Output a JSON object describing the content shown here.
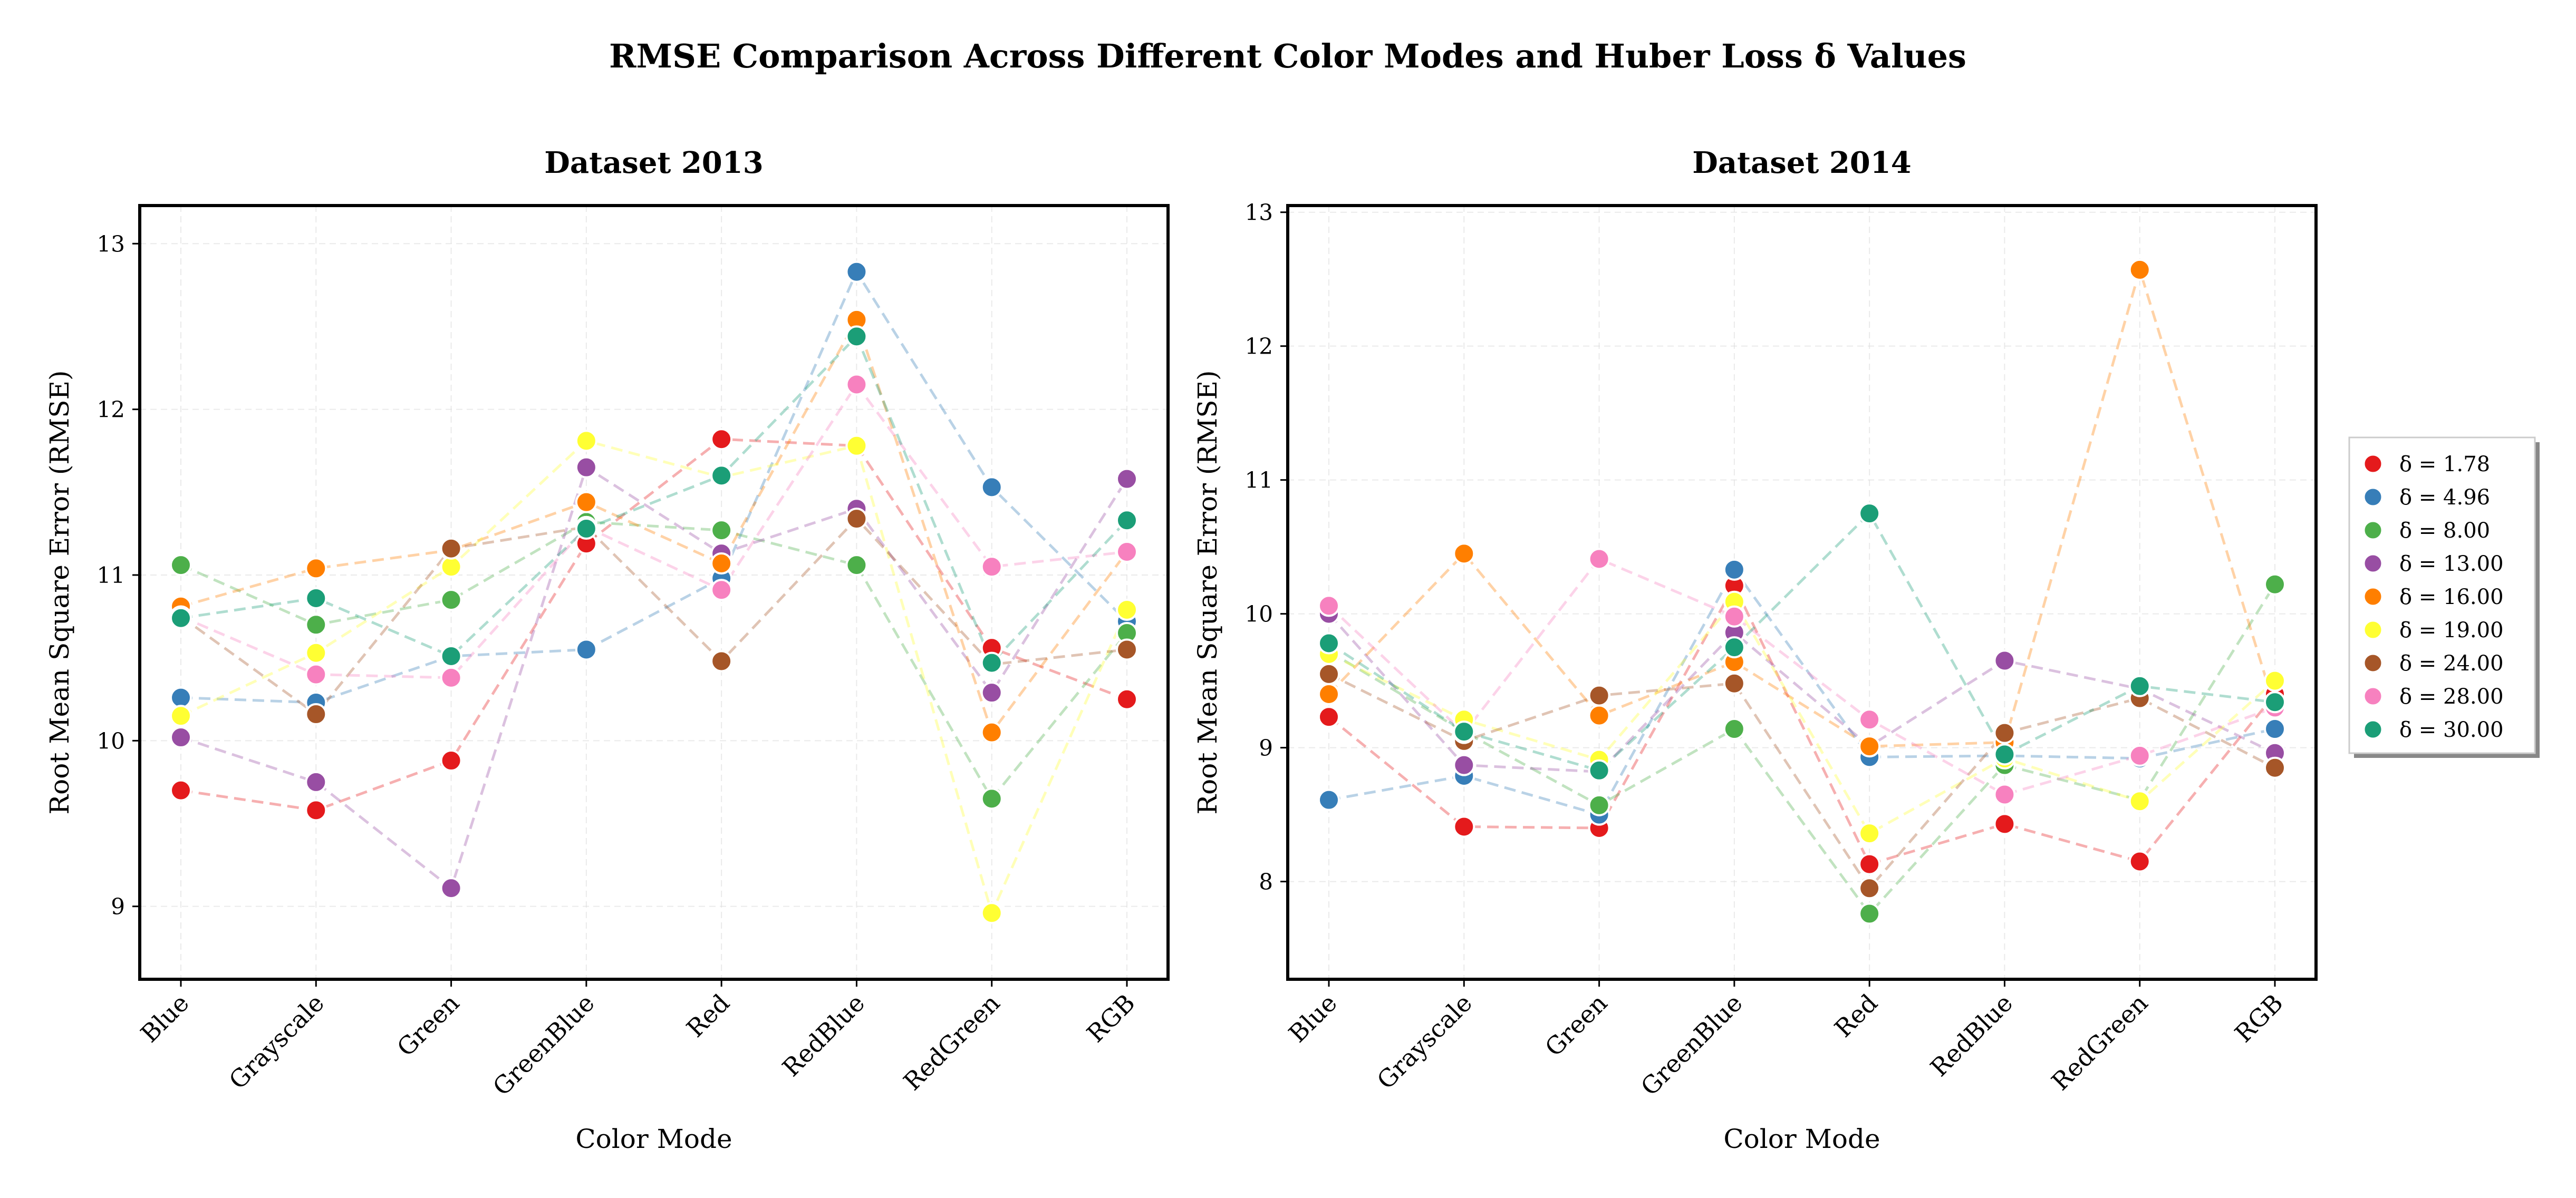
{
  "figure": {
    "title": "RMSE Comparison Across Different Color Modes and Huber Loss δ Values"
  },
  "legend": {
    "placement": "right",
    "items": [
      {
        "label": "δ = 1.78",
        "color": "#e41a1c"
      },
      {
        "label": "δ = 4.96",
        "color": "#377eb8"
      },
      {
        "label": "δ = 8.00",
        "color": "#4daf4a"
      },
      {
        "label": "δ = 13.00",
        "color": "#984ea3"
      },
      {
        "label": "δ = 16.00",
        "color": "#ff7f00"
      },
      {
        "label": "δ = 19.00",
        "color": "#ffff33"
      },
      {
        "label": "δ = 24.00",
        "color": "#a65628"
      },
      {
        "label": "δ = 28.00",
        "color": "#f781bf"
      },
      {
        "label": "δ = 30.00",
        "color": "#1b9e77"
      }
    ]
  },
  "chart_data": [
    {
      "type": "line",
      "title": "Dataset 2013",
      "xlabel": "Color Mode",
      "ylabel": "Root Mean Square Error (RMSE)",
      "categories": [
        "Blue",
        "Grayscale",
        "Green",
        "GreenBlue",
        "Red",
        "RedBlue",
        "RedGreen",
        "RGB"
      ],
      "ylim": [
        8.56,
        13.23
      ],
      "yticks": [
        9,
        10,
        11,
        12,
        13
      ],
      "grid": true,
      "line_style": "dashed",
      "series": [
        {
          "name": "δ = 1.78",
          "color": "#e41a1c",
          "values": [
            9.7,
            9.58,
            9.88,
            11.19,
            11.82,
            11.78,
            10.56,
            10.25
          ]
        },
        {
          "name": "δ = 4.96",
          "color": "#377eb8",
          "values": [
            10.26,
            10.23,
            10.51,
            10.55,
            10.98,
            12.83,
            11.53,
            10.72
          ]
        },
        {
          "name": "δ = 8.00",
          "color": "#4daf4a",
          "values": [
            11.06,
            10.7,
            10.85,
            11.32,
            11.27,
            11.06,
            9.65,
            10.65
          ]
        },
        {
          "name": "δ = 13.00",
          "color": "#984ea3",
          "values": [
            10.02,
            9.75,
            9.11,
            11.65,
            11.13,
            11.4,
            10.29,
            11.58
          ]
        },
        {
          "name": "δ = 16.00",
          "color": "#ff7f00",
          "values": [
            10.81,
            11.04,
            11.15,
            11.44,
            11.07,
            12.54,
            10.05,
            11.14
          ]
        },
        {
          "name": "δ = 19.00",
          "color": "#ffff33",
          "values": [
            10.15,
            10.53,
            11.05,
            11.81,
            11.59,
            11.78,
            8.96,
            10.79
          ]
        },
        {
          "name": "δ = 24.00",
          "color": "#a65628",
          "values": [
            10.75,
            10.16,
            11.16,
            11.29,
            10.48,
            11.34,
            10.46,
            10.55
          ]
        },
        {
          "name": "δ = 28.00",
          "color": "#f781bf",
          "values": [
            10.75,
            10.4,
            10.38,
            11.29,
            10.91,
            12.15,
            11.05,
            11.14
          ]
        },
        {
          "name": "δ = 30.00",
          "color": "#1b9e77",
          "values": [
            10.74,
            10.86,
            10.51,
            11.28,
            11.6,
            12.44,
            10.47,
            11.33
          ]
        }
      ]
    },
    {
      "type": "line",
      "title": "Dataset 2014",
      "xlabel": "Color Mode",
      "ylabel": "Root Mean Square Error (RMSE)",
      "categories": [
        "Blue",
        "Grayscale",
        "Green",
        "GreenBlue",
        "Red",
        "RedBlue",
        "RedGreen",
        "RGB"
      ],
      "ylim": [
        7.27,
        13.05
      ],
      "yticks": [
        8,
        9,
        10,
        11,
        12,
        13
      ],
      "grid": true,
      "line_style": "dashed",
      "series": [
        {
          "name": "δ = 1.78",
          "color": "#e41a1c",
          "values": [
            9.23,
            8.41,
            8.4,
            10.21,
            8.13,
            8.43,
            8.15,
            9.4
          ]
        },
        {
          "name": "δ = 4.96",
          "color": "#377eb8",
          "values": [
            8.61,
            8.79,
            8.5,
            10.33,
            8.93,
            8.94,
            8.92,
            9.14
          ]
        },
        {
          "name": "δ = 8.00",
          "color": "#4daf4a",
          "values": [
            9.72,
            9.12,
            8.57,
            9.14,
            7.76,
            8.87,
            8.61,
            10.22
          ]
        },
        {
          "name": "δ = 13.00",
          "color": "#984ea3",
          "values": [
            10.0,
            8.87,
            8.82,
            9.86,
            9.01,
            9.65,
            9.44,
            8.96
          ]
        },
        {
          "name": "δ = 16.00",
          "color": "#ff7f00",
          "values": [
            9.4,
            10.45,
            9.24,
            9.64,
            9.01,
            9.04,
            12.57,
            9.3
          ]
        },
        {
          "name": "δ = 19.00",
          "color": "#ffff33",
          "values": [
            9.7,
            9.21,
            8.91,
            10.09,
            8.36,
            8.92,
            8.6,
            9.5
          ]
        },
        {
          "name": "δ = 24.00",
          "color": "#a65628",
          "values": [
            9.55,
            9.05,
            9.39,
            9.48,
            7.95,
            9.11,
            9.37,
            8.85
          ]
        },
        {
          "name": "δ = 28.00",
          "color": "#f781bf",
          "values": [
            10.06,
            9.11,
            10.41,
            9.98,
            9.21,
            8.65,
            8.94,
            9.3
          ]
        },
        {
          "name": "δ = 30.00",
          "color": "#1b9e77",
          "values": [
            9.78,
            9.12,
            8.83,
            9.75,
            10.75,
            8.95,
            9.46,
            9.34
          ]
        }
      ]
    }
  ]
}
